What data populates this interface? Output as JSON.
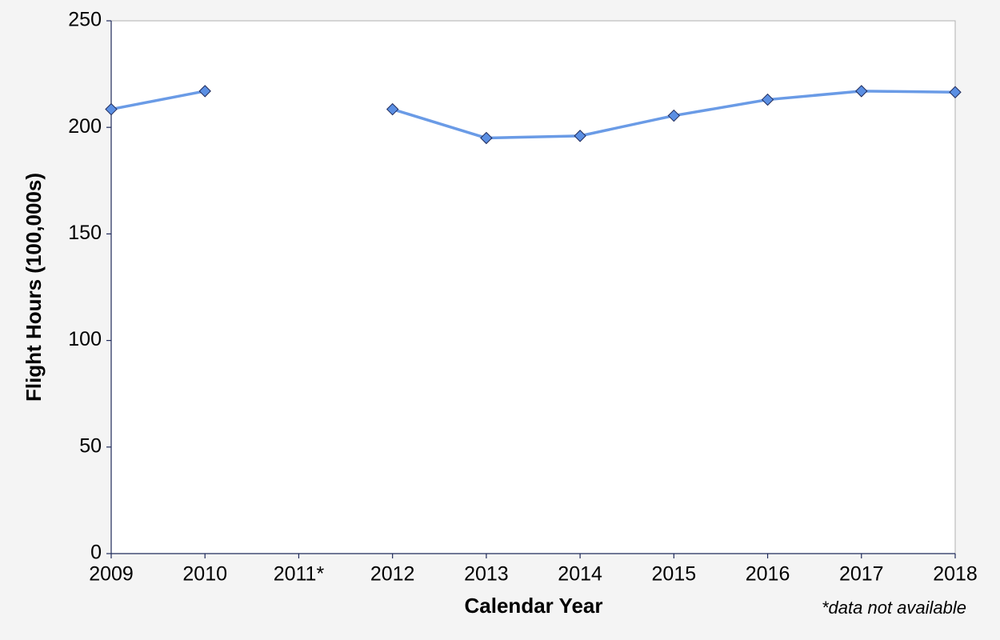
{
  "chart_data": {
    "type": "line",
    "x_label": "Calendar Year",
    "y_label": "Flight Hours (100,000s)",
    "annotation": "*data not available",
    "categories": [
      "2009",
      "2010",
      "2011*",
      "2012",
      "2013",
      "2014",
      "2015",
      "2016",
      "2017",
      "2018"
    ],
    "values": [
      208.5,
      217,
      null,
      208.5,
      195,
      196,
      205.5,
      213,
      217,
      216.5
    ],
    "color": "#6a9be6",
    "marker_color": "#5b8fe3",
    "ylim": [
      0,
      250
    ],
    "yticks": [
      0,
      50,
      100,
      150,
      200,
      250
    ],
    "grid": false
  }
}
